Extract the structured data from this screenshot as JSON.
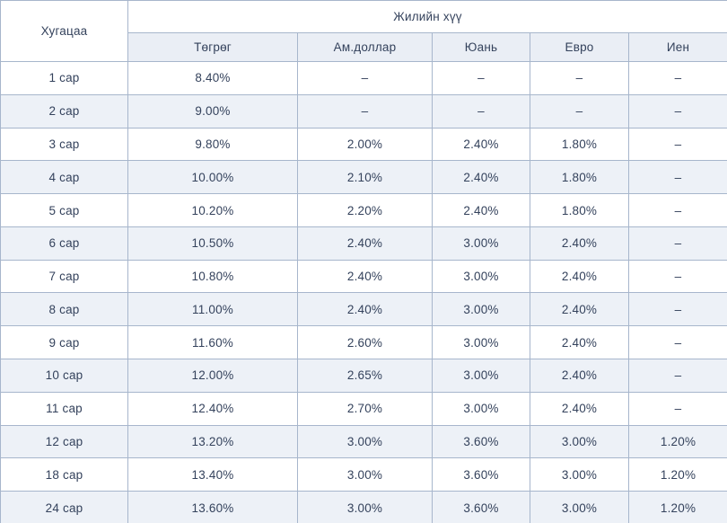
{
  "chart_data": {
    "type": "table",
    "corner_header": "Хугацаа",
    "group_header": "Жилийн хүү",
    "columns": [
      "Төгрөг",
      "Ам.доллар",
      "Юань",
      "Евро",
      "Иен"
    ],
    "empty_value": "–",
    "rows": [
      {
        "label": "1 сар",
        "values": [
          "8.40%",
          "–",
          "–",
          "–",
          "–"
        ]
      },
      {
        "label": "2 сар",
        "values": [
          "9.00%",
          "–",
          "–",
          "–",
          "–"
        ]
      },
      {
        "label": "3 сар",
        "values": [
          "9.80%",
          "2.00%",
          "2.40%",
          "1.80%",
          "–"
        ]
      },
      {
        "label": "4 сар",
        "values": [
          "10.00%",
          "2.10%",
          "2.40%",
          "1.80%",
          "–"
        ]
      },
      {
        "label": "5 сар",
        "values": [
          "10.20%",
          "2.20%",
          "2.40%",
          "1.80%",
          "–"
        ]
      },
      {
        "label": "6 сар",
        "values": [
          "10.50%",
          "2.40%",
          "3.00%",
          "2.40%",
          "–"
        ]
      },
      {
        "label": "7 сар",
        "values": [
          "10.80%",
          "2.40%",
          "3.00%",
          "2.40%",
          "–"
        ]
      },
      {
        "label": "8 сар",
        "values": [
          "11.00%",
          "2.40%",
          "3.00%",
          "2.40%",
          "–"
        ]
      },
      {
        "label": "9 сар",
        "values": [
          "11.60%",
          "2.60%",
          "3.00%",
          "2.40%",
          "–"
        ]
      },
      {
        "label": "10 сар",
        "values": [
          "12.00%",
          "2.65%",
          "3.00%",
          "2.40%",
          "–"
        ]
      },
      {
        "label": "11 сар",
        "values": [
          "12.40%",
          "2.70%",
          "3.00%",
          "2.40%",
          "–"
        ]
      },
      {
        "label": "12 сар",
        "values": [
          "13.20%",
          "3.00%",
          "3.60%",
          "3.00%",
          "1.20%"
        ]
      },
      {
        "label": "18 сар",
        "values": [
          "13.40%",
          "3.00%",
          "3.60%",
          "3.00%",
          "1.20%"
        ]
      },
      {
        "label": "24 сар",
        "values": [
          "13.60%",
          "3.00%",
          "3.60%",
          "3.00%",
          "1.20%"
        ]
      }
    ],
    "colors": {
      "border": "#a7b6cc",
      "alt_row_bg": "#edf1f7",
      "subheader_bg": "#eaeef5",
      "text": "#34425c",
      "background": "#ffffff"
    }
  }
}
